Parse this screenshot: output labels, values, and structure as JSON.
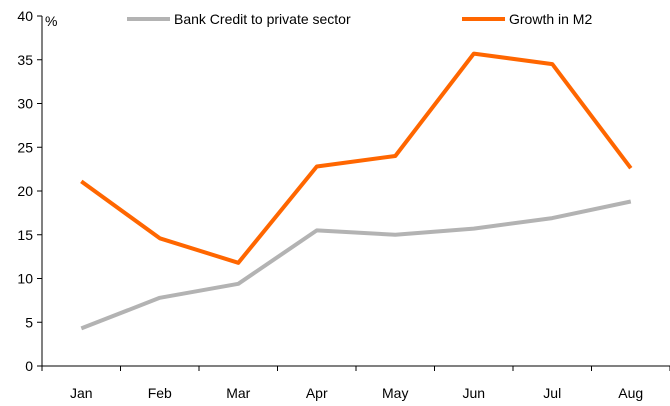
{
  "chart_data": {
    "type": "line",
    "title": "",
    "xlabel": "",
    "ylabel": "%",
    "ylim": [
      0,
      40
    ],
    "yticks": [
      0,
      5,
      10,
      15,
      20,
      25,
      30,
      35,
      40
    ],
    "categories": [
      "Jan",
      "Feb",
      "Mar",
      "Apr",
      "May",
      "Jun",
      "Jul",
      "Aug"
    ],
    "grid": false,
    "legend_position": "top",
    "series": [
      {
        "name": "Bank Credit to private sector",
        "color": "#b3b3b3",
        "values": [
          4.3,
          7.8,
          9.4,
          15.5,
          15.0,
          15.7,
          16.9,
          18.8
        ]
      },
      {
        "name": "Growth in M2",
        "color": "#ff6600",
        "values": [
          21.1,
          14.6,
          11.8,
          22.8,
          24.0,
          35.7,
          34.5,
          22.6
        ]
      }
    ]
  }
}
